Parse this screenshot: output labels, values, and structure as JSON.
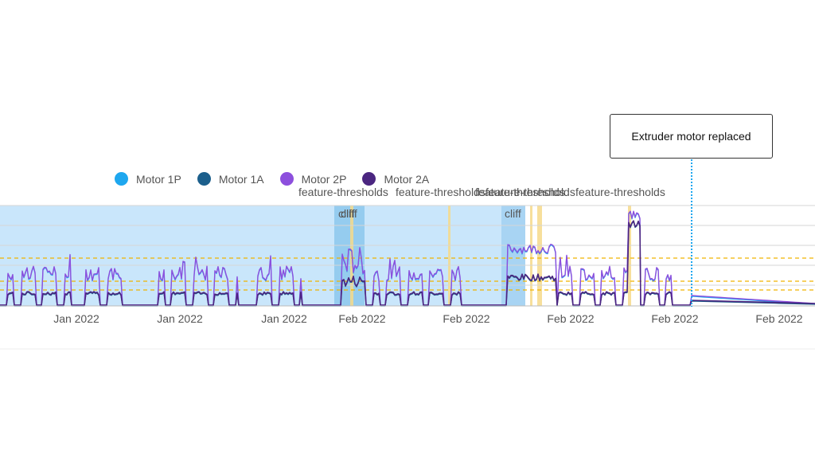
{
  "legend": [
    {
      "name": "Motor 1P",
      "color": "#1ea7ef"
    },
    {
      "name": "Motor 1A",
      "color": "#1c5f8c"
    },
    {
      "name": "Motor 2P",
      "color": "#8d4fdd"
    },
    {
      "name": "Motor 2A",
      "color": "#4b2680"
    }
  ],
  "callout": {
    "text": "Extruder motor replaced"
  },
  "chart_data": {
    "type": "line",
    "x_tick_labels": [
      "Jan 2022",
      "Jan 2022",
      "Jan 2022",
      "Feb 2022",
      "Feb 2022",
      "Feb 2022",
      "Feb 2022",
      "Feb 2022"
    ],
    "series": [
      {
        "name": "Motor 1P",
        "color": "#1ea7ef"
      },
      {
        "name": "Motor 1A",
        "color": "#1c5f8c"
      },
      {
        "name": "Motor 2P",
        "color": "#8d4fdd"
      },
      {
        "name": "Motor 2A",
        "color": "#4b2680"
      }
    ],
    "annotations": {
      "region_labels": [
        "cliff",
        "cliff",
        "cliff"
      ],
      "threshold_labels": [
        "feature-thresholds",
        "feature-thresholds",
        "feature-thresholds",
        "feature-thresholds",
        "feature-thresholds"
      ],
      "event_marker": "Extruder motor replaced"
    },
    "grid": true,
    "legend_position": "top-left"
  }
}
